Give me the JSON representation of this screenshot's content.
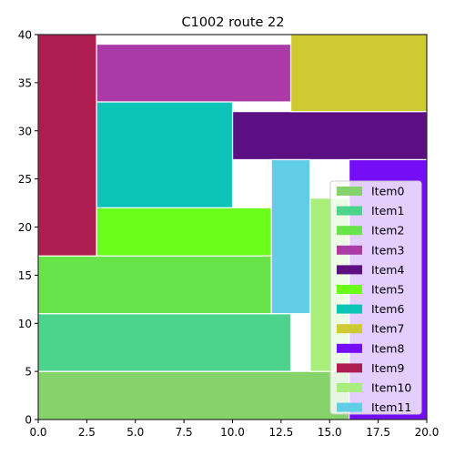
{
  "chart_data": {
    "type": "rectangles",
    "title": "C1002 route 22",
    "xlabel": "",
    "ylabel": "",
    "xlim": [
      0,
      20
    ],
    "ylim": [
      0,
      40
    ],
    "xticks": [
      "0.0",
      "2.5",
      "5.0",
      "7.5",
      "10.0",
      "12.5",
      "15.0",
      "17.5",
      "20.0"
    ],
    "yticks": [
      "0",
      "5",
      "10",
      "15",
      "20",
      "25",
      "30",
      "35",
      "40"
    ],
    "grid": false,
    "legend_position": "lower-right",
    "items": [
      {
        "name": "Item0",
        "color": "#86d36c",
        "x0": 0,
        "y0": 0,
        "x1": 16,
        "y1": 5
      },
      {
        "name": "Item1",
        "color": "#4dd48c",
        "x0": 0,
        "y0": 5,
        "x1": 13,
        "y1": 11
      },
      {
        "name": "Item2",
        "color": "#67e449",
        "x0": 0,
        "y0": 11,
        "x1": 12,
        "y1": 17
      },
      {
        "name": "Item3",
        "color": "#aa3ba6",
        "x0": 3,
        "y0": 33,
        "x1": 13,
        "y1": 39
      },
      {
        "name": "Item4",
        "color": "#5c0f82",
        "x0": 10,
        "y0": 27,
        "x1": 20,
        "y1": 32
      },
      {
        "name": "Item5",
        "color": "#69fd19",
        "x0": 3,
        "y0": 17,
        "x1": 12,
        "y1": 22
      },
      {
        "name": "Item6",
        "color": "#0cc4b8",
        "x0": 3,
        "y0": 22,
        "x1": 10,
        "y1": 33
      },
      {
        "name": "Item7",
        "color": "#cdcb31",
        "x0": 13,
        "y0": 32,
        "x1": 20,
        "y1": 40
      },
      {
        "name": "Item8",
        "color": "#760df7",
        "x0": 16,
        "y0": 0,
        "x1": 20,
        "y1": 27
      },
      {
        "name": "Item9",
        "color": "#ae1d4f",
        "x0": 0,
        "y0": 17,
        "x1": 3,
        "y1": 40
      },
      {
        "name": "Item10",
        "color": "#a7ee7b",
        "x0": 14,
        "y0": 5,
        "x1": 16,
        "y1": 23
      },
      {
        "name": "Item11",
        "color": "#62cde6",
        "x0": 12,
        "y0": 11,
        "x1": 14,
        "y1": 27
      }
    ]
  }
}
